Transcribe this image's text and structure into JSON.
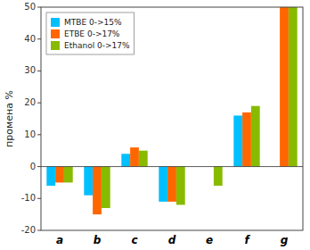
{
  "chart_data": {
    "type": "bar",
    "ylabel": "промена %",
    "categories": [
      "a",
      "b",
      "c",
      "d",
      "e",
      "f",
      "g"
    ],
    "series": [
      {
        "name": "MTBE 0->15%",
        "color": "#00bfff",
        "values": [
          -6,
          -9,
          4,
          -11,
          0,
          16,
          0
        ]
      },
      {
        "name": "ETBE 0->17%",
        "color": "#ff6600",
        "values": [
          -5,
          -15,
          6,
          -11,
          0,
          17,
          50
        ]
      },
      {
        "name": "Ethanol 0->17%",
        "color": "#88bb00",
        "values": [
          -5,
          -13,
          5,
          -12,
          -6,
          19,
          50
        ]
      }
    ],
    "ylim": [
      -20,
      50
    ],
    "yticks": [
      -20,
      -10,
      0,
      10,
      20,
      30,
      40,
      50
    ],
    "grid": false,
    "legend": "upper left"
  }
}
